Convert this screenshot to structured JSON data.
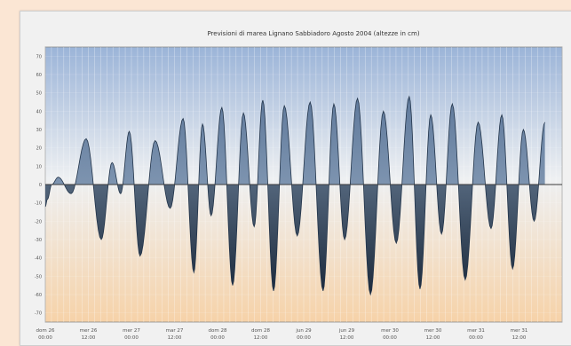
{
  "chart_data": {
    "type": "area",
    "title": "Previsioni di marea Lignano Sabbiadoro Agosto 2004 (altezze in cm)",
    "legend": "",
    "ylim": [
      -75,
      75
    ],
    "yticks": [
      -70,
      -60,
      -50,
      -40,
      -30,
      -20,
      -10,
      0,
      10,
      20,
      30,
      40,
      50,
      60,
      70
    ],
    "xlabels": [
      [
        "dom 26",
        "00:00"
      ],
      [
        "mer 26",
        "12:00"
      ],
      [
        "mer 27",
        "00:00"
      ],
      [
        "mar 27",
        "12:00"
      ],
      [
        "dom 28",
        "00:00"
      ],
      [
        "dom 28",
        "12:00"
      ],
      [
        "jun 29",
        "00:00"
      ],
      [
        "jun 29",
        "12:00"
      ],
      [
        "mer 30",
        "00:00"
      ],
      [
        "mer 30",
        "12:00"
      ],
      [
        "mer 31",
        "00:00"
      ],
      [
        "mer 31",
        "12:00"
      ]
    ],
    "x": [
      0,
      0.05,
      0.15,
      0.3,
      0.6,
      0.95,
      1.3,
      1.55,
      1.75,
      1.95,
      2.2,
      2.55,
      2.9,
      3.2,
      3.45,
      3.65,
      3.85,
      4.1,
      4.35,
      4.6,
      4.85,
      5.05,
      5.3,
      5.55,
      5.85,
      6.15,
      6.45,
      6.7,
      6.95,
      7.25,
      7.55,
      7.85,
      8.15,
      8.45,
      8.7,
      8.95,
      9.2,
      9.45,
      9.75,
      10.05,
      10.35,
      10.6,
      10.85,
      11.1,
      11.35,
      11.6
    ],
    "y": [
      -12,
      -8,
      0,
      4,
      -5,
      25,
      -30,
      12,
      -5,
      29,
      -39,
      24,
      -13,
      36,
      -48,
      33,
      -17,
      42,
      -55,
      39,
      -23,
      46,
      -58,
      43,
      -28,
      45,
      -58,
      44,
      -30,
      47,
      -60,
      40,
      -32,
      48,
      -57,
      38,
      -27,
      44,
      -52,
      34,
      -24,
      38,
      -46,
      30,
      -20,
      34
    ],
    "grid": true
  }
}
